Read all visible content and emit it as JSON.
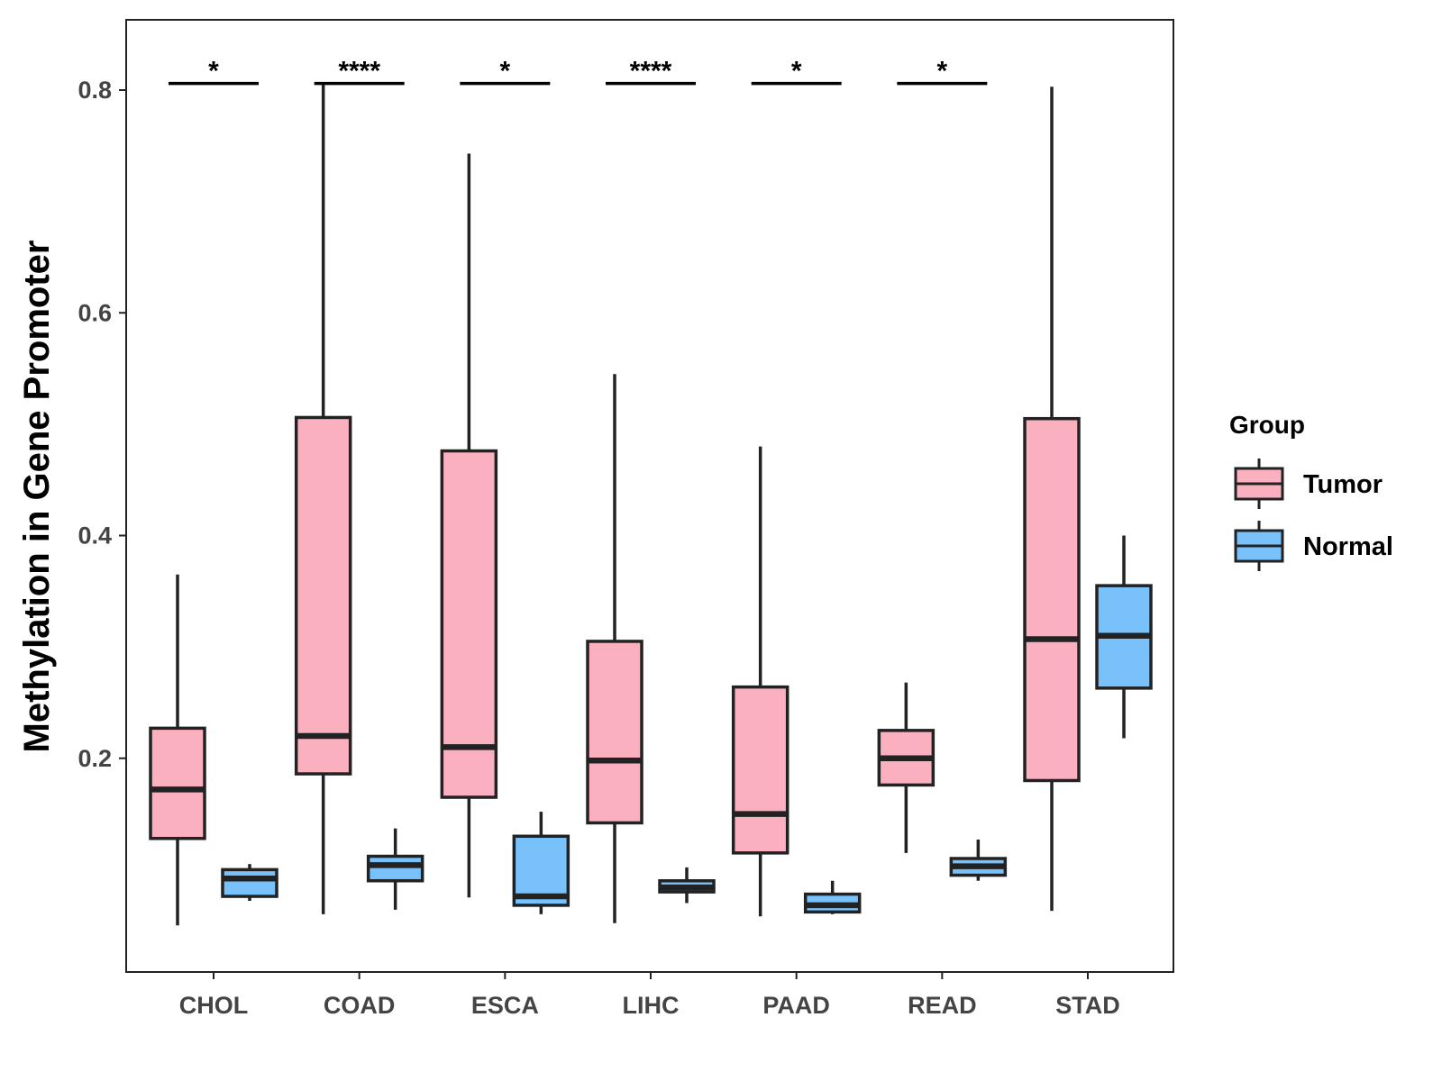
{
  "chart_data": {
    "type": "boxplot",
    "title": "",
    "xlabel": "",
    "ylabel": "Methylation in Gene Promoter",
    "ylim": [
      0.02,
      0.87
    ],
    "y_ticks": [
      "0.2",
      "0.4",
      "0.6",
      "0.8"
    ],
    "y_tick_values": [
      0.2,
      0.4,
      0.6,
      0.8
    ],
    "grid": false,
    "legend_position": "right",
    "legend_title": "Group",
    "categories": [
      "CHOL",
      "COAD",
      "ESCA",
      "LIHC",
      "PAAD",
      "READ",
      "STAD"
    ],
    "series": [
      {
        "name": "Tumor",
        "color": "#FBB0C0",
        "boxes": [
          {
            "min": 0.05,
            "q1": 0.128,
            "median": 0.172,
            "q3": 0.227,
            "max": 0.365
          },
          {
            "min": 0.06,
            "q1": 0.186,
            "median": 0.22,
            "q3": 0.506,
            "max": 0.806
          },
          {
            "min": 0.075,
            "q1": 0.165,
            "median": 0.21,
            "q3": 0.476,
            "max": 0.743
          },
          {
            "min": 0.052,
            "q1": 0.142,
            "median": 0.198,
            "q3": 0.305,
            "max": 0.545
          },
          {
            "min": 0.058,
            "q1": 0.115,
            "median": 0.15,
            "q3": 0.264,
            "max": 0.48
          },
          {
            "min": 0.115,
            "q1": 0.176,
            "median": 0.2,
            "q3": 0.225,
            "max": 0.268
          },
          {
            "min": 0.063,
            "q1": 0.18,
            "median": 0.307,
            "q3": 0.505,
            "max": 0.803
          }
        ]
      },
      {
        "name": "Normal",
        "color": "#78C1FA",
        "boxes": [
          {
            "min": 0.072,
            "q1": 0.076,
            "median": 0.092,
            "q3": 0.1,
            "max": 0.105
          },
          {
            "min": 0.064,
            "q1": 0.09,
            "median": 0.104,
            "q3": 0.112,
            "max": 0.137
          },
          {
            "min": 0.06,
            "q1": 0.068,
            "median": 0.076,
            "q3": 0.13,
            "max": 0.152
          },
          {
            "min": 0.07,
            "q1": 0.08,
            "median": 0.084,
            "q3": 0.09,
            "max": 0.102
          },
          {
            "min": 0.06,
            "q1": 0.062,
            "median": 0.068,
            "q3": 0.078,
            "max": 0.09
          },
          {
            "min": 0.09,
            "q1": 0.095,
            "median": 0.103,
            "q3": 0.11,
            "max": 0.127
          },
          {
            "min": 0.218,
            "q1": 0.263,
            "median": 0.31,
            "q3": 0.355,
            "max": 0.4
          }
        ]
      }
    ],
    "significance": [
      {
        "category": "CHOL",
        "label": "*"
      },
      {
        "category": "COAD",
        "label": "****"
      },
      {
        "category": "ESCA",
        "label": "*"
      },
      {
        "category": "LIHC",
        "label": "****"
      },
      {
        "category": "PAAD",
        "label": "*"
      },
      {
        "category": "READ",
        "label": "*"
      }
    ],
    "significance_bar_level": 0.806
  }
}
